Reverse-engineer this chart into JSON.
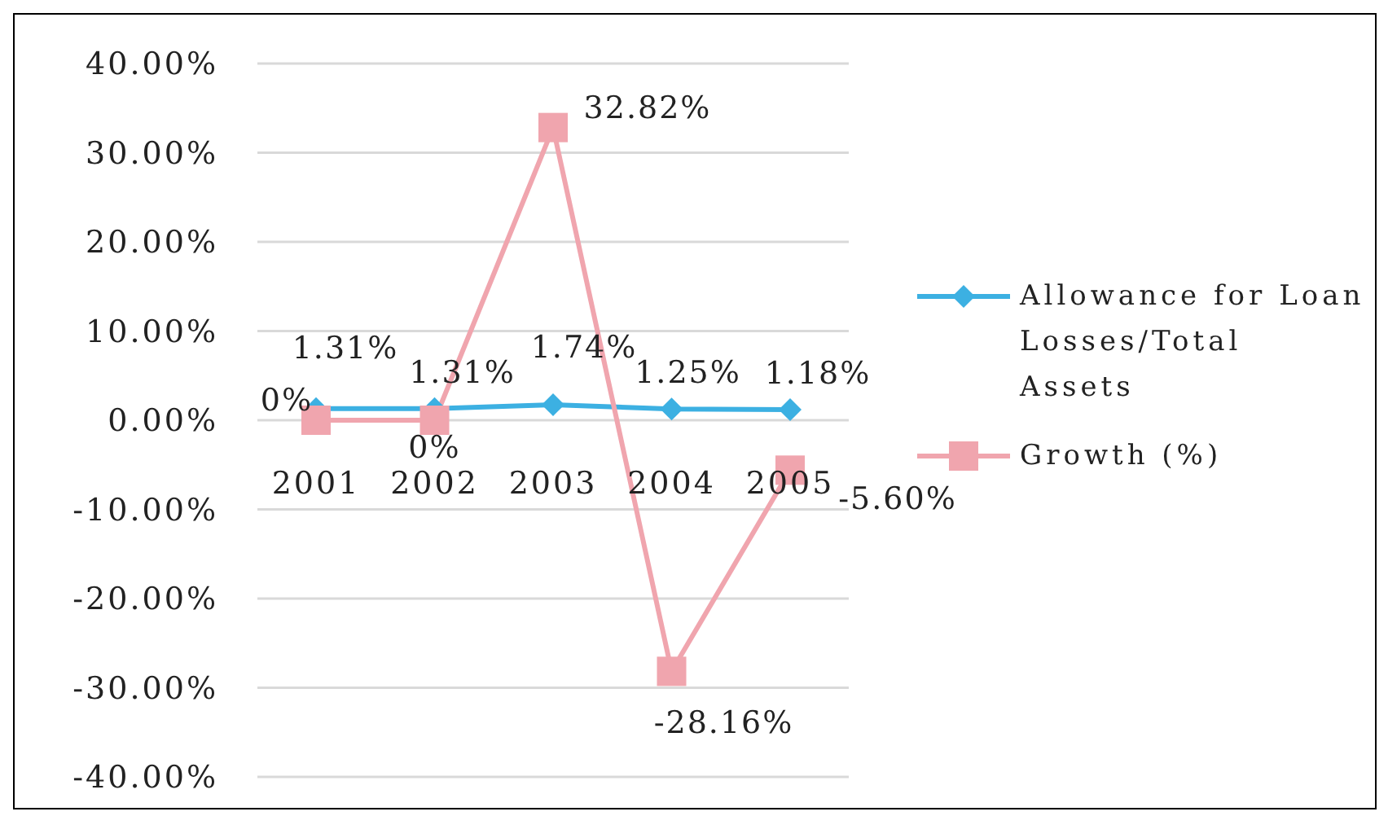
{
  "chart_data": {
    "type": "line",
    "categories": [
      "2001",
      "2002",
      "2003",
      "2004",
      "2005"
    ],
    "series": [
      {
        "name": "Allowance for Loan Losses/Total Assets",
        "color": "#3cb0e2",
        "marker": "diamond",
        "values": [
          1.31,
          1.31,
          1.74,
          1.25,
          1.18
        ],
        "value_labels": [
          "1.31%",
          "1.31%",
          "1.74%",
          "1.25%",
          "1.18%"
        ]
      },
      {
        "name": "Growth (%)",
        "color": "#f0a5ae",
        "marker": "square",
        "values": [
          0,
          0,
          32.82,
          -28.16,
          -5.6
        ],
        "value_labels": [
          "0%",
          "0%",
          "32.82%",
          "-28.16%",
          "-5.60%"
        ]
      }
    ],
    "ylim": [
      -40,
      40
    ],
    "yticks": [
      {
        "value": -40,
        "label": "-40.00%"
      },
      {
        "value": -30,
        "label": "-30.00%"
      },
      {
        "value": -20,
        "label": "-20.00%"
      },
      {
        "value": -10,
        "label": "-10.00%"
      },
      {
        "value": 0,
        "label": "0.00%"
      },
      {
        "value": 10,
        "label": "10.00%"
      },
      {
        "value": 20,
        "label": "20.00%"
      },
      {
        "value": 30,
        "label": "30.00%"
      },
      {
        "value": 40,
        "label": "40.00%"
      }
    ],
    "grid": "y",
    "legend": "right"
  }
}
